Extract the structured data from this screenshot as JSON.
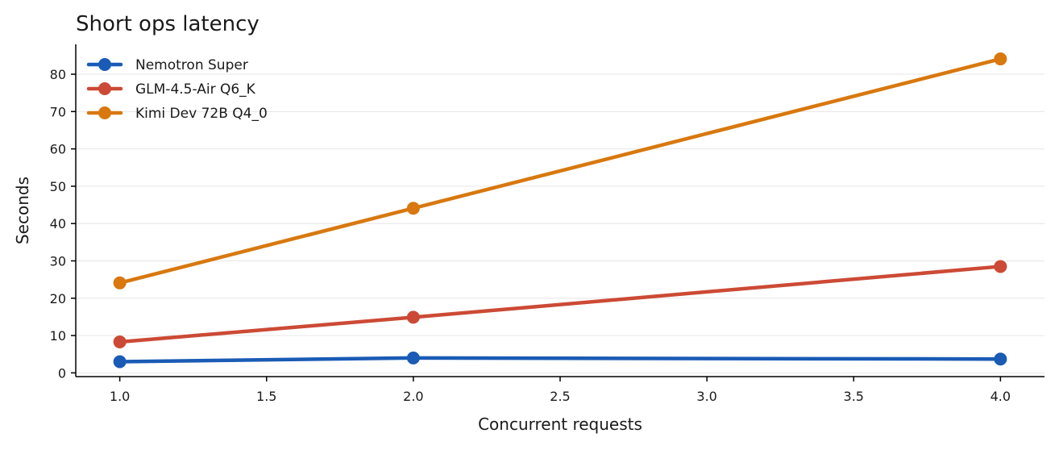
{
  "chart_data": {
    "type": "line",
    "title": "Short ops latency",
    "xlabel": "Concurrent requests",
    "ylabel": "Seconds",
    "xlim": [
      0.85,
      4.15
    ],
    "ylim": [
      -1,
      88
    ],
    "x_ticks": [
      1.0,
      1.5,
      2.0,
      2.5,
      3.0,
      3.5,
      4.0
    ],
    "x_tick_labels": [
      "1.0",
      "1.5",
      "2.0",
      "2.5",
      "3.0",
      "3.5",
      "4.0"
    ],
    "y_ticks": [
      0,
      10,
      20,
      30,
      40,
      50,
      60,
      70,
      80
    ],
    "y_tick_labels": [
      "0",
      "10",
      "20",
      "30",
      "40",
      "50",
      "60",
      "70",
      "80"
    ],
    "grid": "horizontal",
    "legend_position": "top-left",
    "x": [
      1,
      2,
      4
    ],
    "series": [
      {
        "name": "Nemotron Super",
        "values": [
          3.0,
          4.0,
          3.7
        ],
        "color": "#1a5bb5"
      },
      {
        "name": "GLM-4.5-Air Q6_K",
        "values": [
          8.3,
          14.9,
          28.5
        ],
        "color": "#cc4a35"
      },
      {
        "name": "Kimi Dev 72B Q4_0",
        "values": [
          24.1,
          44.1,
          84.1
        ],
        "color": "#d8780e"
      }
    ]
  }
}
